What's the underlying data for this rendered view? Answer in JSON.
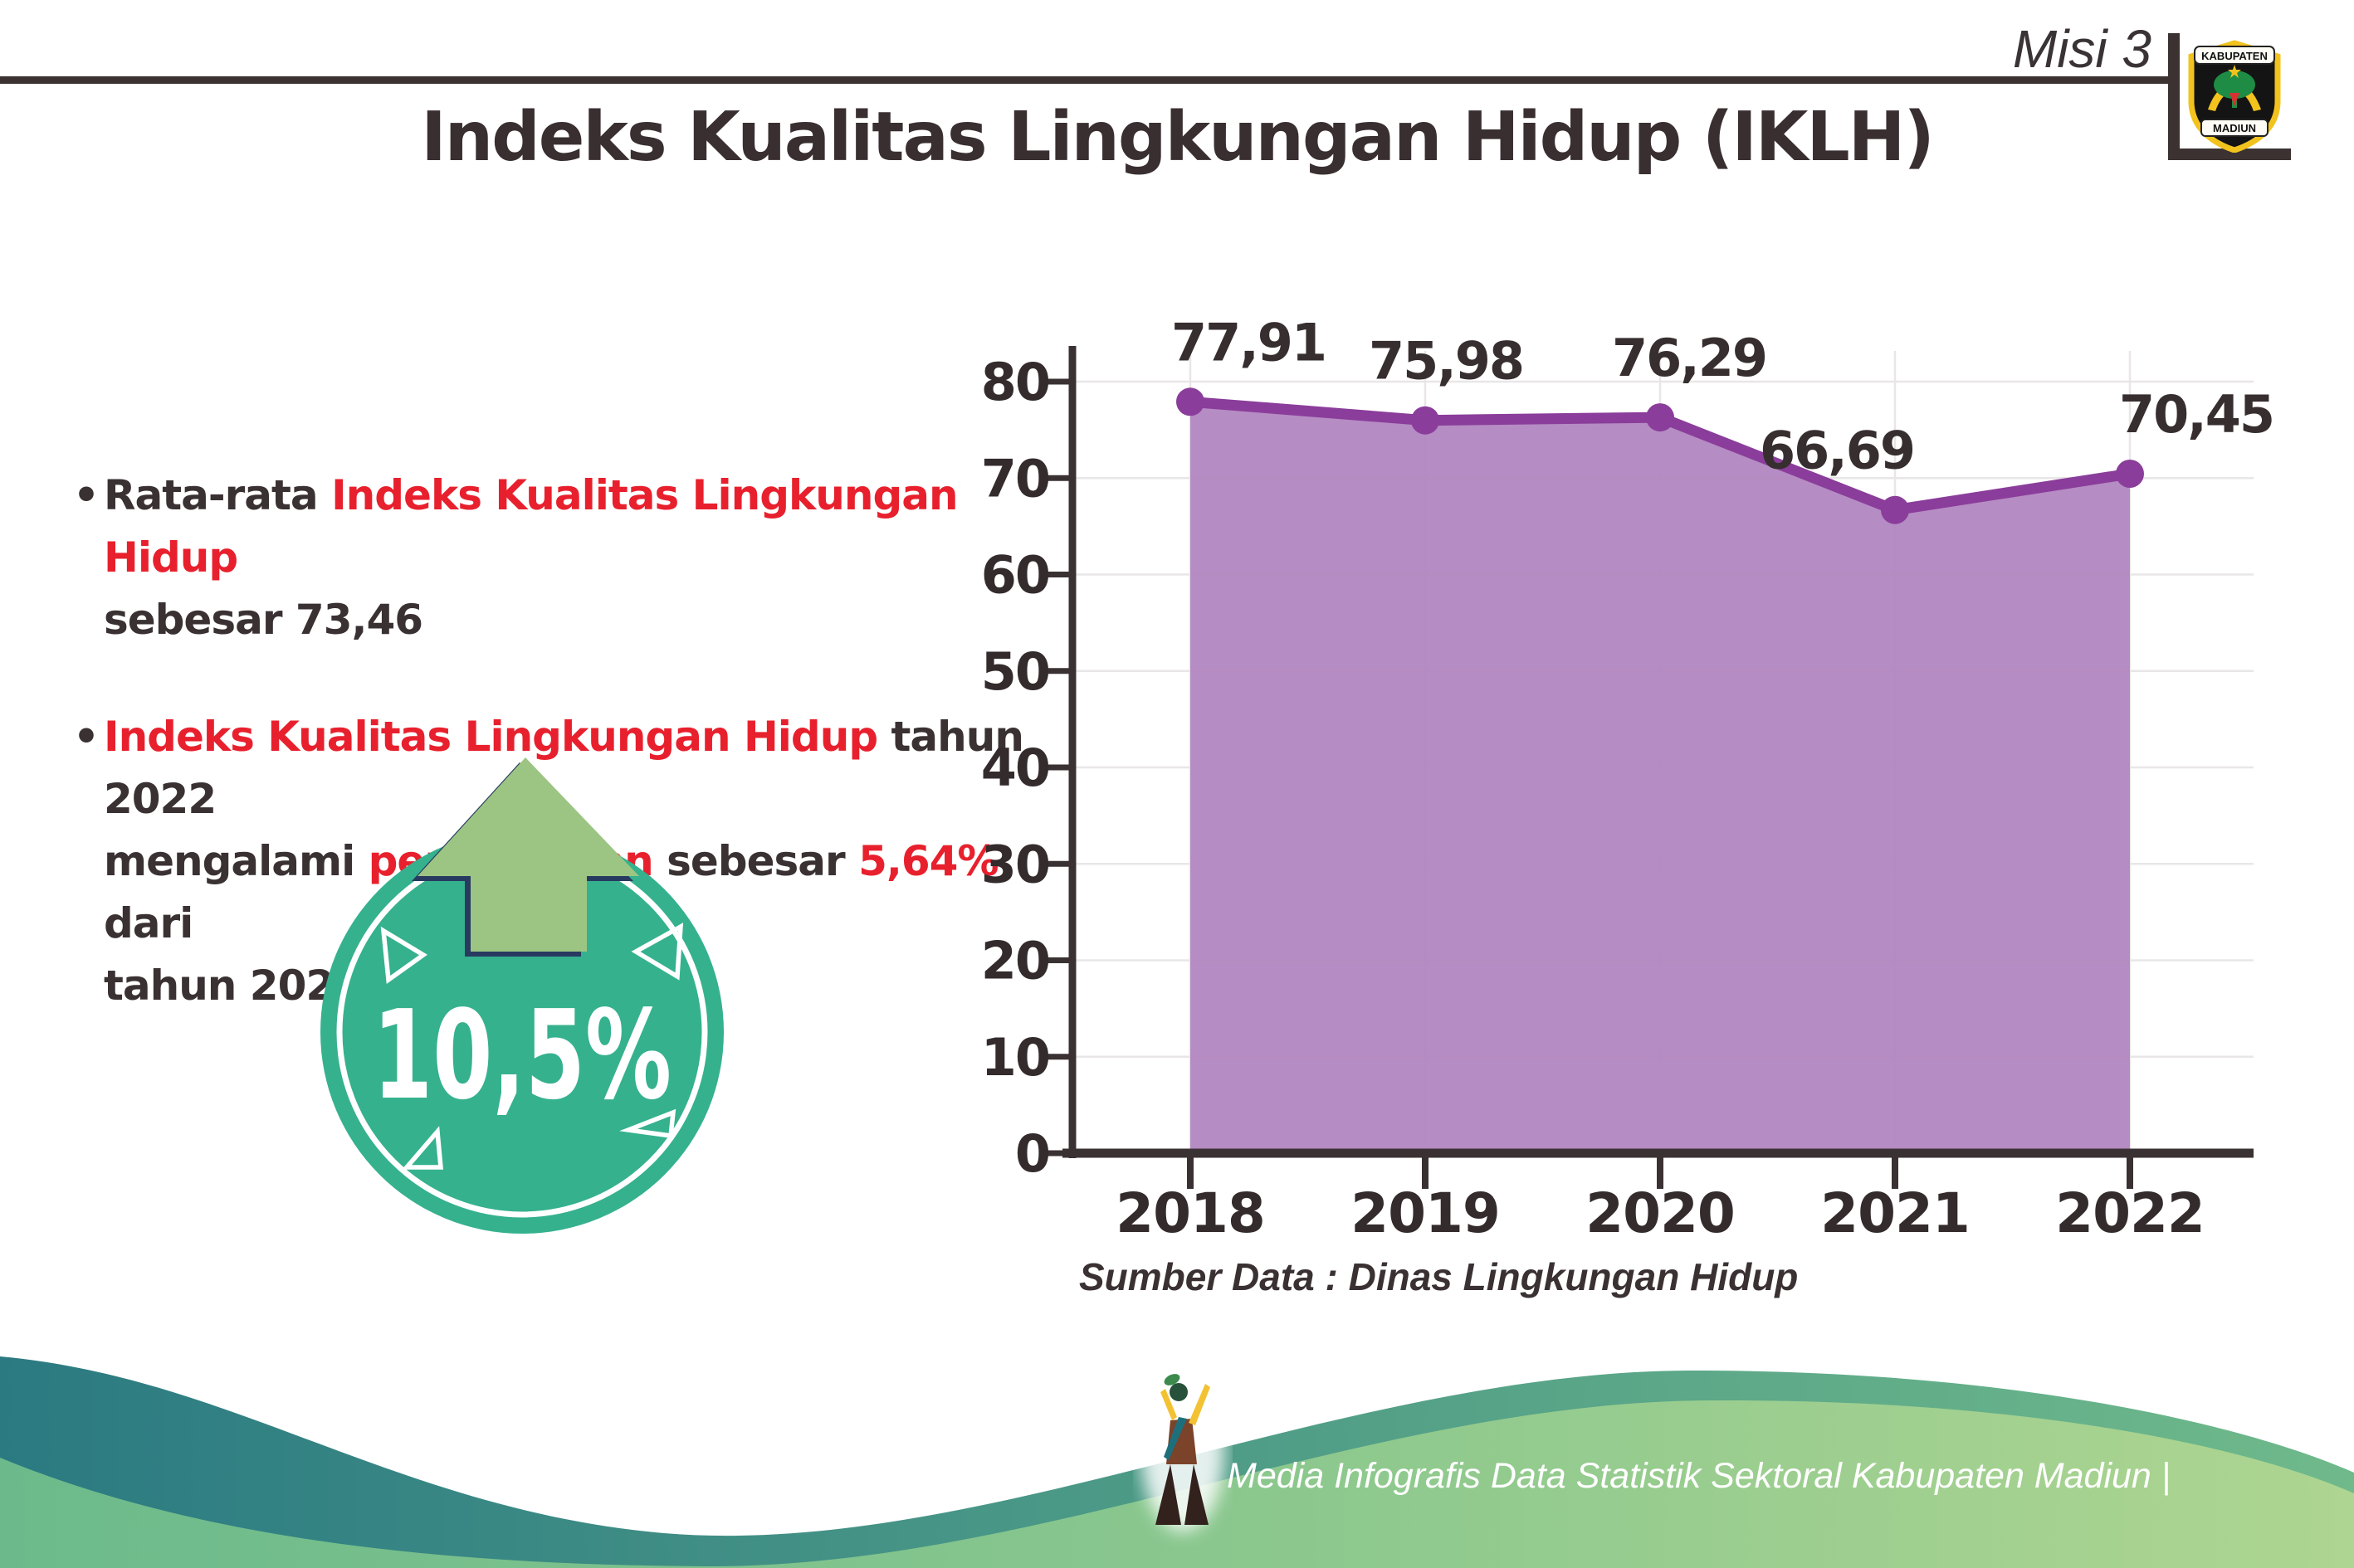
{
  "header": {
    "misi": "Misi 3"
  },
  "logo": {
    "name": "kabupaten-madiun-seal",
    "top_text": "KABUPATEN",
    "bottom_text": "MADIUN"
  },
  "title": "Indeks Kualitas Lingkungan Hidup (IKLH)",
  "bullets": [
    {
      "lines": [
        [
          {
            "t": "Rata-rata ",
            "c": "dark"
          },
          {
            "t": "Indeks Kualitas Lingkungan Hidup",
            "c": "red"
          }
        ],
        [
          {
            "t": "sebesar 73,46",
            "c": "dark"
          }
        ]
      ]
    },
    {
      "lines": [
        [
          {
            "t": "Indeks Kualitas Lingkungan Hidup",
            "c": "red"
          },
          {
            "t": " tahun 2022",
            "c": "dark"
          }
        ],
        [
          {
            "t": "mengalami ",
            "c": "dark"
          },
          {
            "t": "peningkatan",
            "c": "red"
          },
          {
            "t": " sebesar ",
            "c": "dark"
          },
          {
            "t": "5,64%",
            "c": "red"
          },
          {
            "t": " dari",
            "c": "dark"
          }
        ],
        [
          {
            "t": "tahun 2021",
            "c": "dark"
          }
        ]
      ]
    }
  ],
  "badge": {
    "value": "10,5%",
    "circle_color": "#35b18e",
    "arrow_color": "#9cc583",
    "arrow_outline": "#293a60"
  },
  "chart_data": {
    "type": "area",
    "title": "Indeks Kualitas Lingkungan Hidup (IKLH)",
    "categories": [
      "2018",
      "2019",
      "2020",
      "2021",
      "2022"
    ],
    "values": [
      77.91,
      75.98,
      76.29,
      66.69,
      70.45
    ],
    "value_labels": [
      "77,91",
      "75,98",
      "76,29",
      "66,69",
      "70,45"
    ],
    "yticks": [
      0,
      10,
      20,
      30,
      40,
      50,
      60,
      70,
      80
    ],
    "ylim": [
      0,
      85
    ],
    "grid": true,
    "legend": "none",
    "xlabel": "",
    "ylabel": "",
    "source": "Sumber Data : Dinas Lingkungan Hidup",
    "colors": {
      "area": "#b287c1",
      "line": "#8a3d9a",
      "marker": "#8a3d9a",
      "axis": "#3a3133",
      "grid": "#e9e6e7",
      "label": "#372e30"
    }
  },
  "footer": {
    "text": "Media Infografis Data Statistik Sektoral Kabupaten Madiun |"
  }
}
